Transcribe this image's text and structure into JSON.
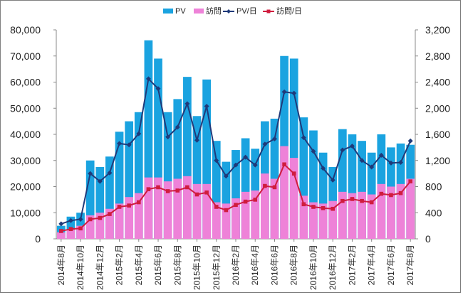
{
  "chart_data": {
    "type": "bar",
    "title": "",
    "categories": [
      "2014年8月",
      "2014年9月",
      "2014年10月",
      "2014年11月",
      "2014年12月",
      "2015年1月",
      "2015年2月",
      "2015年3月",
      "2015年4月",
      "2015年5月",
      "2015年6月",
      "2015年7月",
      "2015年8月",
      "2015年9月",
      "2015年10月",
      "2015年11月",
      "2015年12月",
      "2016年1月",
      "2016年2月",
      "2016年3月",
      "2016年4月",
      "2016年5月",
      "2016年6月",
      "2016年7月",
      "2016年8月",
      "2016年9月",
      "2016年10月",
      "2016年11月",
      "2016年12月",
      "2017年1月",
      "2017年2月",
      "2017年3月",
      "2017年4月",
      "2017年5月",
      "2017年6月",
      "2017年7月",
      "2017年8月"
    ],
    "x_tick_labels": [
      "2014年8月",
      "2014年10月",
      "2014年12月",
      "2015年2月",
      "2015年4月",
      "2015年6月",
      "2015年8月",
      "2015年10月",
      "2015年12月",
      "2016年2月",
      "2016年4月",
      "2016年6月",
      "2016年8月",
      "2016年10月",
      "2016年12月",
      "2017年2月",
      "2017年4月",
      "2017年6月",
      "2017年8月"
    ],
    "series": [
      {
        "name": "PV",
        "type": "bar",
        "axis": "left",
        "color": "#1aa3e0",
        "values": [
          5000,
          8500,
          10000,
          30000,
          27500,
          31500,
          41000,
          45000,
          48500,
          76000,
          69000,
          48500,
          53500,
          62000,
          47000,
          61000,
          37500,
          29500,
          34000,
          38500,
          34500,
          45000,
          46000,
          70000,
          69000,
          46500,
          41500,
          33000,
          27500,
          42000,
          40000,
          37500,
          33000,
          40000,
          35000,
          36500,
          36000
        ]
      },
      {
        "name": "訪問",
        "type": "bar",
        "axis": "left",
        "color": "#ee82d8",
        "values": [
          2500,
          3500,
          5000,
          9000,
          10000,
          11500,
          13500,
          16000,
          17500,
          23500,
          23500,
          22000,
          23000,
          24000,
          21000,
          21000,
          14000,
          13500,
          15500,
          18000,
          18500,
          25000,
          23000,
          35500,
          31000,
          16500,
          14000,
          13500,
          14500,
          18000,
          17500,
          18000,
          17000,
          21000,
          20000,
          21000,
          23000
        ]
      },
      {
        "name": "PV/日",
        "type": "line",
        "axis": "right",
        "color": "#1f3a7a",
        "values": [
          230,
          280,
          300,
          1000,
          880,
          1010,
          1460,
          1440,
          1610,
          2450,
          2300,
          1560,
          1710,
          2070,
          1510,
          2030,
          1200,
          960,
          1130,
          1250,
          1130,
          1450,
          1530,
          2250,
          2230,
          1550,
          1340,
          1080,
          900,
          1360,
          1420,
          1200,
          1100,
          1280,
          1160,
          1170,
          1500
        ]
      },
      {
        "name": "訪問/日",
        "type": "line",
        "axis": "right",
        "color": "#d01c3e",
        "values": [
          120,
          150,
          160,
          300,
          320,
          380,
          490,
          510,
          560,
          760,
          790,
          730,
          740,
          790,
          680,
          710,
          490,
          440,
          520,
          570,
          600,
          810,
          790,
          1140,
          1000,
          530,
          490,
          470,
          460,
          580,
          610,
          580,
          560,
          690,
          670,
          700,
          880
        ]
      }
    ],
    "yleft": {
      "lim": [
        0,
        80000
      ],
      "ticks": [
        "0",
        "10,000",
        "20,000",
        "30,000",
        "40,000",
        "50,000",
        "60,000",
        "70,000",
        "80,000"
      ]
    },
    "yright": {
      "lim": [
        0,
        3200
      ],
      "ticks": [
        "0",
        "400",
        "800",
        "1,200",
        "1,600",
        "2,000",
        "2,400",
        "2,800",
        "3,200"
      ]
    },
    "legend_position": "top-center",
    "grid": false
  }
}
